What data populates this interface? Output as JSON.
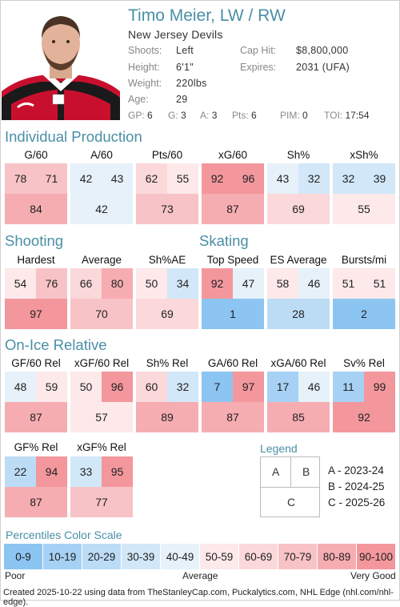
{
  "header": {
    "name": "Timo Meier, LW / RW",
    "team": "New Jersey Devils",
    "shoots_label": "Shoots:",
    "shoots": "Left",
    "height_label": "Height:",
    "height": "6'1\"",
    "weight_label": "Weight:",
    "weight": "220lbs",
    "age_label": "Age:",
    "age": "29",
    "cap_label": "Cap Hit:",
    "cap": "$8,800,000",
    "expires_label": "Expires:",
    "expires": "2031 (UFA)",
    "stats": {
      "gp_label": "GP:",
      "gp": "6",
      "g_label": "G:",
      "g": "3",
      "a_label": "A:",
      "a": "3",
      "pts_label": "Pts:",
      "pts": "6",
      "pim_label": "PIM:",
      "pim": "0",
      "toi_label": "TOI:",
      "toi": "17:54"
    }
  },
  "sections": {
    "individual": "Individual Production",
    "shooting": "Shooting",
    "skating": "Skating",
    "onice": "On-Ice Relative"
  },
  "metrics": [
    {
      "label": "G/60",
      "a": 78,
      "b": 71,
      "c": 84
    },
    {
      "label": "A/60",
      "a": 42,
      "b": 43,
      "c": 42
    },
    {
      "label": "Pts/60",
      "a": 62,
      "b": 55,
      "c": 73
    },
    {
      "label": "xG/60",
      "a": 92,
      "b": 96,
      "c": 87
    },
    {
      "label": "Sh%",
      "a": 43,
      "b": 32,
      "c": 69
    },
    {
      "label": "xSh%",
      "a": 32,
      "b": 39,
      "c": 55
    },
    {
      "label": "Hardest",
      "a": 54,
      "b": 76,
      "c": 97
    },
    {
      "label": "Average",
      "a": 66,
      "b": 80,
      "c": 70
    },
    {
      "label": "Sh%AE",
      "a": 50,
      "b": 34,
      "c": 69
    },
    {
      "label": "Top Speed",
      "a": 92,
      "b": 47,
      "c": 1
    },
    {
      "label": "ES Average",
      "a": 58,
      "b": 46,
      "c": 28
    },
    {
      "label": "Bursts/mi",
      "a": 51,
      "b": 51,
      "c": 2
    },
    {
      "label": "GF/60 Rel",
      "a": 48,
      "b": 59,
      "c": 87
    },
    {
      "label": "xGF/60 Rel",
      "a": 50,
      "b": 96,
      "c": 57
    },
    {
      "label": "Sh% Rel",
      "a": 60,
      "b": 32,
      "c": 89
    },
    {
      "label": "GA/60 Rel",
      "a": 7,
      "b": 97,
      "c": 87
    },
    {
      "label": "xGA/60 Rel",
      "a": 17,
      "b": 46,
      "c": 85
    },
    {
      "label": "Sv% Rel",
      "a": 11,
      "b": 99,
      "c": 92
    },
    {
      "label": "GF% Rel",
      "a": 22,
      "b": 94,
      "c": 87
    },
    {
      "label": "xGF% Rel",
      "a": 33,
      "b": 95,
      "c": 77
    }
  ],
  "legend": {
    "title": "Legend",
    "a": "A",
    "b": "B",
    "c": "C",
    "a_desc": "A - 2023-24",
    "b_desc": "B - 2024-25",
    "c_desc": "C - 2025-26"
  },
  "scale": {
    "title": "Percentiles Color Scale",
    "bins": [
      "0-9",
      "10-19",
      "20-29",
      "30-39",
      "40-49",
      "50-59",
      "60-69",
      "70-79",
      "80-89",
      "90-100"
    ],
    "colors": [
      "#8cc4f2",
      "#a6d1f4",
      "#bcdcf6",
      "#d2e7f8",
      "#e6f1fa",
      "#fde9ea",
      "#fbd8da",
      "#f8c3c6",
      "#f6adb2",
      "#f3979d"
    ],
    "poor": "Poor",
    "average": "Average",
    "very_good": "Very Good"
  },
  "footer": "Created 2025-10-22 using data from TheStanleyCap.com, Puckalytics.com, NHL Edge (nhl.com/nhl-edge)."
}
